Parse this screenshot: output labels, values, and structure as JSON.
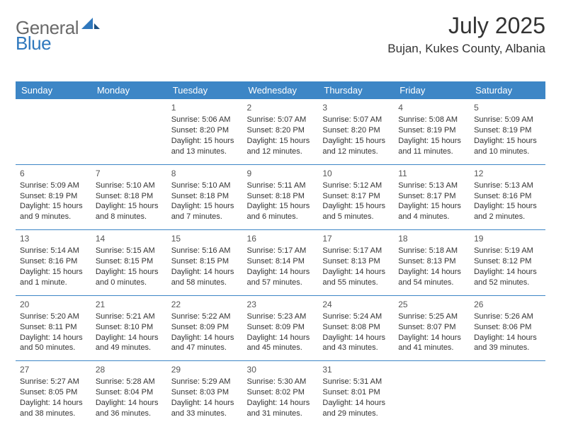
{
  "logo": {
    "general": "General",
    "blue": "Blue"
  },
  "title": "July 2025",
  "subtitle": "Bujan, Kukes County, Albania",
  "colors": {
    "header_bg": "#3d86c6",
    "header_fg": "#ffffff",
    "rule": "#3d86c6",
    "logo_gray": "#6a6a6a",
    "logo_blue": "#2f78bd",
    "text": "#333333"
  },
  "weekdays": [
    "Sunday",
    "Monday",
    "Tuesday",
    "Wednesday",
    "Thursday",
    "Friday",
    "Saturday"
  ],
  "weeks": [
    [
      null,
      null,
      {
        "n": "1",
        "sr": "Sunrise: 5:06 AM",
        "ss": "Sunset: 8:20 PM",
        "dl": "Daylight: 15 hours and 13 minutes."
      },
      {
        "n": "2",
        "sr": "Sunrise: 5:07 AM",
        "ss": "Sunset: 8:20 PM",
        "dl": "Daylight: 15 hours and 12 minutes."
      },
      {
        "n": "3",
        "sr": "Sunrise: 5:07 AM",
        "ss": "Sunset: 8:20 PM",
        "dl": "Daylight: 15 hours and 12 minutes."
      },
      {
        "n": "4",
        "sr": "Sunrise: 5:08 AM",
        "ss": "Sunset: 8:19 PM",
        "dl": "Daylight: 15 hours and 11 minutes."
      },
      {
        "n": "5",
        "sr": "Sunrise: 5:09 AM",
        "ss": "Sunset: 8:19 PM",
        "dl": "Daylight: 15 hours and 10 minutes."
      }
    ],
    [
      {
        "n": "6",
        "sr": "Sunrise: 5:09 AM",
        "ss": "Sunset: 8:19 PM",
        "dl": "Daylight: 15 hours and 9 minutes."
      },
      {
        "n": "7",
        "sr": "Sunrise: 5:10 AM",
        "ss": "Sunset: 8:18 PM",
        "dl": "Daylight: 15 hours and 8 minutes."
      },
      {
        "n": "8",
        "sr": "Sunrise: 5:10 AM",
        "ss": "Sunset: 8:18 PM",
        "dl": "Daylight: 15 hours and 7 minutes."
      },
      {
        "n": "9",
        "sr": "Sunrise: 5:11 AM",
        "ss": "Sunset: 8:18 PM",
        "dl": "Daylight: 15 hours and 6 minutes."
      },
      {
        "n": "10",
        "sr": "Sunrise: 5:12 AM",
        "ss": "Sunset: 8:17 PM",
        "dl": "Daylight: 15 hours and 5 minutes."
      },
      {
        "n": "11",
        "sr": "Sunrise: 5:13 AM",
        "ss": "Sunset: 8:17 PM",
        "dl": "Daylight: 15 hours and 4 minutes."
      },
      {
        "n": "12",
        "sr": "Sunrise: 5:13 AM",
        "ss": "Sunset: 8:16 PM",
        "dl": "Daylight: 15 hours and 2 minutes."
      }
    ],
    [
      {
        "n": "13",
        "sr": "Sunrise: 5:14 AM",
        "ss": "Sunset: 8:16 PM",
        "dl": "Daylight: 15 hours and 1 minute."
      },
      {
        "n": "14",
        "sr": "Sunrise: 5:15 AM",
        "ss": "Sunset: 8:15 PM",
        "dl": "Daylight: 15 hours and 0 minutes."
      },
      {
        "n": "15",
        "sr": "Sunrise: 5:16 AM",
        "ss": "Sunset: 8:15 PM",
        "dl": "Daylight: 14 hours and 58 minutes."
      },
      {
        "n": "16",
        "sr": "Sunrise: 5:17 AM",
        "ss": "Sunset: 8:14 PM",
        "dl": "Daylight: 14 hours and 57 minutes."
      },
      {
        "n": "17",
        "sr": "Sunrise: 5:17 AM",
        "ss": "Sunset: 8:13 PM",
        "dl": "Daylight: 14 hours and 55 minutes."
      },
      {
        "n": "18",
        "sr": "Sunrise: 5:18 AM",
        "ss": "Sunset: 8:13 PM",
        "dl": "Daylight: 14 hours and 54 minutes."
      },
      {
        "n": "19",
        "sr": "Sunrise: 5:19 AM",
        "ss": "Sunset: 8:12 PM",
        "dl": "Daylight: 14 hours and 52 minutes."
      }
    ],
    [
      {
        "n": "20",
        "sr": "Sunrise: 5:20 AM",
        "ss": "Sunset: 8:11 PM",
        "dl": "Daylight: 14 hours and 50 minutes."
      },
      {
        "n": "21",
        "sr": "Sunrise: 5:21 AM",
        "ss": "Sunset: 8:10 PM",
        "dl": "Daylight: 14 hours and 49 minutes."
      },
      {
        "n": "22",
        "sr": "Sunrise: 5:22 AM",
        "ss": "Sunset: 8:09 PM",
        "dl": "Daylight: 14 hours and 47 minutes."
      },
      {
        "n": "23",
        "sr": "Sunrise: 5:23 AM",
        "ss": "Sunset: 8:09 PM",
        "dl": "Daylight: 14 hours and 45 minutes."
      },
      {
        "n": "24",
        "sr": "Sunrise: 5:24 AM",
        "ss": "Sunset: 8:08 PM",
        "dl": "Daylight: 14 hours and 43 minutes."
      },
      {
        "n": "25",
        "sr": "Sunrise: 5:25 AM",
        "ss": "Sunset: 8:07 PM",
        "dl": "Daylight: 14 hours and 41 minutes."
      },
      {
        "n": "26",
        "sr": "Sunrise: 5:26 AM",
        "ss": "Sunset: 8:06 PM",
        "dl": "Daylight: 14 hours and 39 minutes."
      }
    ],
    [
      {
        "n": "27",
        "sr": "Sunrise: 5:27 AM",
        "ss": "Sunset: 8:05 PM",
        "dl": "Daylight: 14 hours and 38 minutes."
      },
      {
        "n": "28",
        "sr": "Sunrise: 5:28 AM",
        "ss": "Sunset: 8:04 PM",
        "dl": "Daylight: 14 hours and 36 minutes."
      },
      {
        "n": "29",
        "sr": "Sunrise: 5:29 AM",
        "ss": "Sunset: 8:03 PM",
        "dl": "Daylight: 14 hours and 33 minutes."
      },
      {
        "n": "30",
        "sr": "Sunrise: 5:30 AM",
        "ss": "Sunset: 8:02 PM",
        "dl": "Daylight: 14 hours and 31 minutes."
      },
      {
        "n": "31",
        "sr": "Sunrise: 5:31 AM",
        "ss": "Sunset: 8:01 PM",
        "dl": "Daylight: 14 hours and 29 minutes."
      },
      null,
      null
    ]
  ]
}
